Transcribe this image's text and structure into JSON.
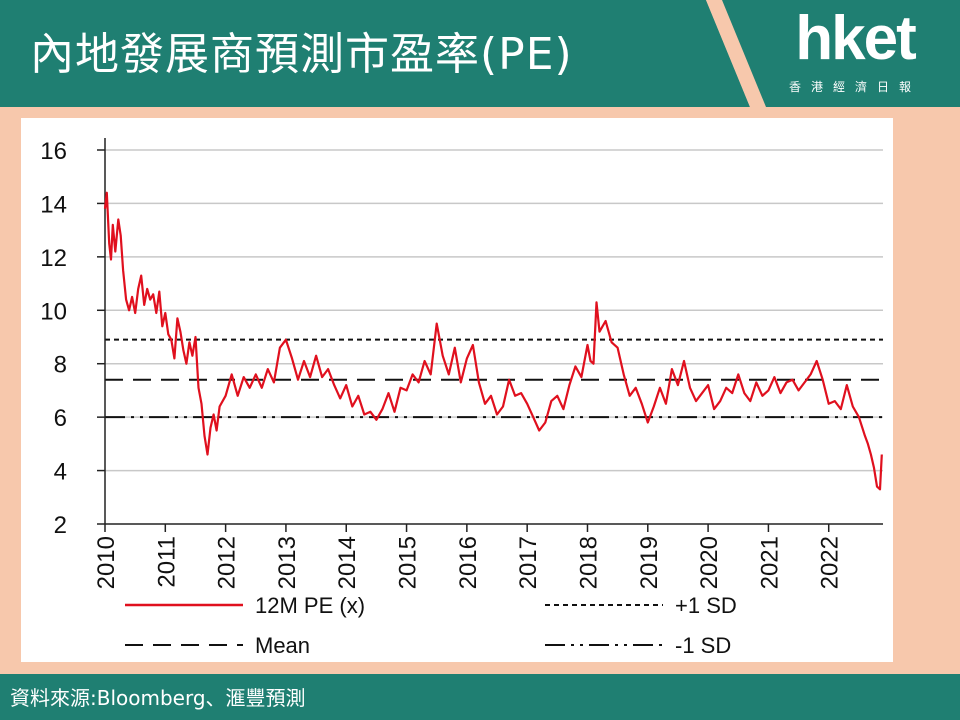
{
  "header": {
    "title": "內地發展商預測市盈率(PE)",
    "logo": "hket",
    "logo_subtitle": "香港經濟日報"
  },
  "colors": {
    "teal": "#1f7f72",
    "peach": "#f7c8ac",
    "series": "#e0101e"
  },
  "footer": {
    "source": "資料來源:Bloomberg、滙豐預測"
  },
  "chart_data": {
    "type": "line",
    "title": "",
    "xlabel": "",
    "ylabel": "",
    "ylim": [
      2,
      16
    ],
    "yticks": [
      "16",
      "14",
      "12",
      "10",
      "8",
      "6",
      "4",
      "2"
    ],
    "xlim": [
      2010,
      2022.9
    ],
    "xticks": [
      "2010",
      "2011",
      "2012",
      "2013",
      "2014",
      "2015",
      "2016",
      "2017",
      "2018",
      "2019",
      "2020",
      "2021",
      "2022"
    ],
    "grid": "horizontal",
    "legend": [
      "12M PE (x)",
      "+1 SD",
      "Mean",
      "-1 SD"
    ],
    "reference_lines": [
      {
        "name": "+1 SD",
        "value": 8.9
      },
      {
        "name": "Mean",
        "value": 7.4
      },
      {
        "name": "-1 SD",
        "value": 6.0
      }
    ],
    "series": [
      {
        "name": "12M PE (x)",
        "x": [
          2010.0,
          2010.03,
          2010.07,
          2010.1,
          2010.13,
          2010.17,
          2010.22,
          2010.26,
          2010.3,
          2010.35,
          2010.4,
          2010.45,
          2010.5,
          2010.55,
          2010.6,
          2010.65,
          2010.7,
          2010.75,
          2010.8,
          2010.85,
          2010.9,
          2010.95,
          2011.0,
          2011.05,
          2011.1,
          2011.15,
          2011.2,
          2011.25,
          2011.3,
          2011.35,
          2011.4,
          2011.45,
          2011.5,
          2011.55,
          2011.6,
          2011.65,
          2011.7,
          2011.75,
          2011.8,
          2011.85,
          2011.9,
          2012.0,
          2012.1,
          2012.2,
          2012.3,
          2012.4,
          2012.5,
          2012.6,
          2012.7,
          2012.8,
          2012.9,
          2013.0,
          2013.1,
          2013.2,
          2013.3,
          2013.4,
          2013.5,
          2013.6,
          2013.7,
          2013.8,
          2013.9,
          2014.0,
          2014.1,
          2014.2,
          2014.3,
          2014.4,
          2014.5,
          2014.6,
          2014.7,
          2014.8,
          2014.9,
          2015.0,
          2015.1,
          2015.2,
          2015.3,
          2015.4,
          2015.5,
          2015.6,
          2015.7,
          2015.8,
          2015.9,
          2016.0,
          2016.1,
          2016.2,
          2016.3,
          2016.4,
          2016.5,
          2016.6,
          2016.7,
          2016.8,
          2016.9,
          2017.0,
          2017.1,
          2017.2,
          2017.3,
          2017.4,
          2017.5,
          2017.6,
          2017.7,
          2017.8,
          2017.9,
          2018.0,
          2018.05,
          2018.1,
          2018.15,
          2018.2,
          2018.3,
          2018.4,
          2018.5,
          2018.6,
          2018.7,
          2018.8,
          2018.9,
          2019.0,
          2019.1,
          2019.2,
          2019.3,
          2019.4,
          2019.5,
          2019.6,
          2019.7,
          2019.8,
          2019.9,
          2020.0,
          2020.1,
          2020.2,
          2020.3,
          2020.4,
          2020.5,
          2020.6,
          2020.7,
          2020.8,
          2020.9,
          2021.0,
          2021.1,
          2021.2,
          2021.3,
          2021.4,
          2021.5,
          2021.6,
          2021.7,
          2021.8,
          2021.9,
          2022.0,
          2022.1,
          2022.2,
          2022.3,
          2022.4,
          2022.5,
          2022.6,
          2022.65,
          2022.7,
          2022.75,
          2022.8,
          2022.85,
          2022.88
        ],
        "values": [
          13.8,
          14.4,
          12.5,
          11.9,
          13.2,
          12.2,
          13.4,
          12.8,
          11.5,
          10.4,
          10.0,
          10.5,
          9.9,
          10.8,
          11.3,
          10.2,
          10.8,
          10.4,
          10.6,
          9.9,
          10.7,
          9.4,
          9.9,
          9.1,
          8.9,
          8.2,
          9.7,
          9.2,
          8.5,
          8.0,
          8.8,
          8.3,
          9.0,
          7.1,
          6.5,
          5.3,
          4.6,
          5.6,
          6.1,
          5.5,
          6.4,
          6.8,
          7.6,
          6.8,
          7.5,
          7.1,
          7.6,
          7.1,
          7.8,
          7.3,
          8.6,
          8.9,
          8.2,
          7.4,
          8.1,
          7.5,
          8.3,
          7.5,
          7.8,
          7.2,
          6.7,
          7.2,
          6.4,
          6.8,
          6.1,
          6.2,
          5.9,
          6.3,
          6.9,
          6.2,
          7.1,
          7.0,
          7.6,
          7.3,
          8.1,
          7.6,
          9.5,
          8.3,
          7.6,
          8.6,
          7.3,
          8.2,
          8.7,
          7.3,
          6.5,
          6.8,
          6.1,
          6.4,
          7.4,
          6.8,
          6.9,
          6.5,
          6.0,
          5.5,
          5.8,
          6.6,
          6.8,
          6.3,
          7.2,
          7.9,
          7.5,
          8.7,
          8.1,
          8.0,
          10.3,
          9.2,
          9.6,
          8.8,
          8.6,
          7.6,
          6.8,
          7.1,
          6.5,
          5.8,
          6.4,
          7.1,
          6.5,
          7.8,
          7.2,
          8.1,
          7.1,
          6.6,
          6.9,
          7.2,
          6.3,
          6.6,
          7.1,
          6.9,
          7.6,
          6.9,
          6.6,
          7.3,
          6.8,
          7.0,
          7.5,
          6.9,
          7.3,
          7.4,
          7.0,
          7.3,
          7.6,
          8.1,
          7.4,
          6.5,
          6.6,
          6.3,
          7.2,
          6.4,
          6.0,
          5.3,
          5.0,
          4.6,
          4.1,
          3.4,
          3.3,
          4.6
        ]
      }
    ]
  }
}
